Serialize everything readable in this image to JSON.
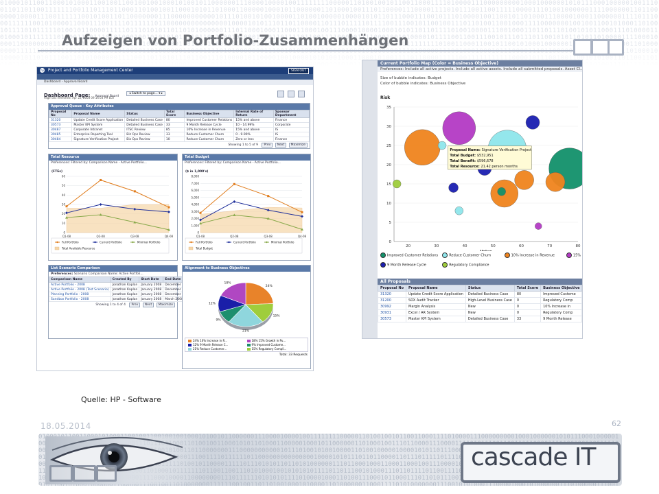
{
  "slide": {
    "title": "Aufzeigen von Portfolio-Zusammenhängen",
    "source": "Quelle: HP - Software",
    "date": "18.05.2014",
    "page": "62",
    "logo": "cascade IT"
  },
  "colors": {
    "accent": "#1d3e79",
    "title_gray": "#6f7278"
  },
  "left_app": {
    "header_title": "Project and Portfolio Management Center",
    "sign_out": "SIGN OUT",
    "breadcrumb": "Dashboard - Approval Board",
    "page_label": "Dashboard Page:",
    "page_name": "Approval Board",
    "switch_label": "Switch to page...",
    "last_refreshed": "Page last refreshed: Apr 22, 2008 09:14:54 PM EDT",
    "approval_queue": {
      "title": "Approval Queue - Key Attributes",
      "columns": [
        "Proposal No",
        "Proposal Name",
        "Status",
        "Total Score",
        "Business Objective",
        "Internal Rate of Return",
        "Sponsor Department"
      ],
      "rows": [
        [
          "31320",
          "Update Credit Score Application",
          "Detailed Business Case",
          "80",
          "Improved Customer Relations",
          "15% and above",
          "Finance"
        ],
        [
          "30573",
          "Master KPI System",
          "Detailed Business Case",
          "33",
          "9 Month Release Cycle",
          "10 - 14.99%",
          "Corporate"
        ],
        [
          "30487",
          "Corporate Intranet",
          "ITSC Review",
          "85",
          "10% Increase in Revenue",
          "15% and above",
          "IS"
        ],
        [
          "30485",
          "Enterprise Reporting Tool",
          "Biz Ops Review",
          "33",
          "Reduce Customer Churn",
          "0 - 9.99%",
          "IS"
        ],
        [
          "30484",
          "Signature Verification Project",
          "Biz Ops Review",
          "10",
          "Reduce Customer Churn",
          "Zero or less",
          "Finance"
        ]
      ],
      "pager": "Showing 1 to 5 of 9",
      "prev": "Prev",
      "next": "Next",
      "maximize": "Maximize"
    },
    "total_resource": {
      "title": "Total Resource",
      "prefs": "Preferences: Filtered by: Comparison Name - Active Portfolio...",
      "unit": "(FTEs)",
      "legend": [
        "Full Portfolio",
        "Current Portfolio",
        "Minimal Portfolio",
        "Total Available Resource"
      ]
    },
    "total_budget": {
      "title": "Total Budget",
      "prefs": "Preferences: Filtered by: Comparison Name - Active Portfolio...",
      "unit": "($ in 1,000's)",
      "legend": [
        "Full Portfolio",
        "Current Portfolio",
        "Minimal Portfolio",
        "Total Budget"
      ]
    },
    "scenario": {
      "title": "List Scenario Comparison",
      "prefs_label": "Preferences:",
      "prefs_value": "Scenario Comparison Name: Active Portfoli...",
      "columns": [
        "Comparison Name",
        "Created By",
        "Start Date",
        "End Date"
      ],
      "rows": [
        [
          "Active Portfolio - 2008",
          "Jonathan Kaplan",
          "January 2008",
          "December 2008"
        ],
        [
          "Active Portfolio - 2008 (Test Scenario)",
          "Jonathan Kaplan",
          "January 2008",
          "December 2008"
        ],
        [
          "Planning Portfolio - 2008",
          "Jonathan Kaplan",
          "January 2008",
          "December 2008"
        ],
        [
          "Sandbox Portfolio - 2008",
          "Jonathan Kaplan",
          "January 2008",
          "March 2008"
        ]
      ],
      "pager": "Showing 1 to 4 of 4"
    },
    "alignment": {
      "title": "Alignment to Business Objectives",
      "slice_labels": [
        "24%",
        "15%",
        "21%",
        "9%",
        "12%",
        "18%"
      ],
      "legend": [
        "24% 10% Increase in R...",
        "18% 15% Growth in Pu...",
        "12% 9 Month Release C...",
        "9% Improved Custome...",
        "21% Reduce Customer...",
        "15% Regulatory Compli..."
      ],
      "total": "Total: 33 Requests"
    }
  },
  "right_app": {
    "map_title": "Current Portfolio Map (Color = Business Objective)",
    "prefs": "Preferences: Include all active projects. Include all active assets. Include all submitted proposals. Asset Cl...",
    "size_note": "Size of bubble indicates: Budget",
    "color_note": "Color of bubble indicates: Business Objective",
    "tooltip": {
      "name_label": "Proposal Name:",
      "name": "Signature Verification Project",
      "budget_label": "Total Budget:",
      "budget": "$532,951",
      "benefit_label": "Total Benefit:",
      "benefit": "$596,678",
      "resource_label": "Total Resource:",
      "resource": "21.42 person months"
    },
    "legend": [
      "Improved Customer Relations",
      "Reduce Customer Churn",
      "10% Increase in Revenue",
      "15%",
      "9 Month Release Cycle",
      "Regulatory Compliance"
    ],
    "all_proposals": {
      "title": "All Proposals",
      "columns": [
        "Proposal No",
        "Proposal Name",
        "Status",
        "Total Score",
        "Business Objective"
      ],
      "rows": [
        [
          "31320",
          "Update Credit Score Application",
          "Detailed Business Case",
          "80",
          "Improved Custome"
        ],
        [
          "31200",
          "SOX Audit Tracker",
          "High-Level Business Case",
          "0",
          "Regulatory Comp"
        ],
        [
          "30992",
          "Margin Analysis",
          "New",
          "0",
          "10% Increase in"
        ],
        [
          "30931",
          "Excel / AR System",
          "New",
          "0",
          "Regulatory Comp"
        ],
        [
          "30573",
          "Master KPI System",
          "Detailed Business Case",
          "33",
          "9 Month Release"
        ]
      ]
    }
  },
  "chart_data": [
    {
      "type": "line",
      "title": "Total Resource",
      "ylabel": "(FTEs)",
      "categories": [
        "Q1-08",
        "Q2-08",
        "Q3-08",
        "Q4-08"
      ],
      "ylim": [
        0,
        60
      ],
      "yticks": [
        "0",
        "10",
        "20",
        "30",
        "40",
        "50",
        "60"
      ],
      "series": [
        {
          "name": "Full Portfolio",
          "values": [
            28,
            56,
            44,
            27
          ],
          "color": "#e07b1a"
        },
        {
          "name": "Current Portfolio",
          "values": [
            21,
            30,
            25,
            22
          ],
          "color": "#1f2f9a"
        },
        {
          "name": "Minimal Portfolio",
          "values": [
            16,
            19,
            11,
            3
          ],
          "color": "#88a94a"
        },
        {
          "name": "Total Available Resource",
          "values": [
            26,
            26,
            30,
            30
          ],
          "color": "#f6d6a8"
        }
      ]
    },
    {
      "type": "line",
      "title": "Total Budget",
      "ylabel": "($ in 1,000's)",
      "categories": [
        "Q1-08",
        "Q2-08",
        "Q3-08",
        "Q4-08"
      ],
      "ylim": [
        0,
        8000
      ],
      "yticks": [
        "0",
        "1,000",
        "2,000",
        "3,000",
        "4,000",
        "5,000",
        "6,000",
        "7,000",
        "8,000"
      ],
      "series": [
        {
          "name": "Full Portfolio",
          "values": [
            2800,
            6900,
            5200,
            2900
          ],
          "color": "#e07b1a"
        },
        {
          "name": "Current Portfolio",
          "values": [
            1800,
            4400,
            3200,
            2300
          ],
          "color": "#1f2f9a"
        },
        {
          "name": "Minimal Portfolio",
          "values": [
            1300,
            2500,
            2000,
            450
          ],
          "color": "#88a94a"
        },
        {
          "name": "Total Budget",
          "values": [
            2600,
            3100,
            3600,
            3500
          ],
          "color": "#f6d6a8"
        }
      ]
    },
    {
      "type": "pie",
      "title": "Alignment to Business Objectives",
      "values": [
        24,
        15,
        21,
        9,
        12,
        18
      ],
      "colors": [
        "#e8832a",
        "#9fcd3c",
        "#8fd6dd",
        "#1d8f6e",
        "#1a1ea8",
        "#b047c2"
      ]
    },
    {
      "type": "scatter",
      "title": "Current Portfolio Map (Color = Business Objective)",
      "xlabel": "Value",
      "ylabel": "Risk",
      "xlim": [
        15,
        80
      ],
      "ylim": [
        0,
        35
      ],
      "xticks": [
        "20",
        "30",
        "40",
        "50",
        "60",
        "70",
        "80"
      ],
      "yticks": [
        "0",
        "5",
        "10",
        "15",
        "20",
        "25",
        "30",
        "35"
      ],
      "points": [
        {
          "x": 25,
          "y": 24.5,
          "size": 13,
          "color": "#f0841e"
        },
        {
          "x": 32,
          "y": 25,
          "size": 3,
          "color": "#8fe6ec"
        },
        {
          "x": 38,
          "y": 29.5,
          "size": 12,
          "color": "#b43ac5"
        },
        {
          "x": 55,
          "y": 24,
          "size": 14,
          "color": "#8fe6ec"
        },
        {
          "x": 77,
          "y": 19,
          "size": 15,
          "color": "#12916b"
        },
        {
          "x": 64,
          "y": 31,
          "size": 5,
          "color": "#1b1fb0"
        },
        {
          "x": 54,
          "y": 12.5,
          "size": 10,
          "color": "#f0841e"
        },
        {
          "x": 53,
          "y": 13,
          "size": 3,
          "color": "#12916b"
        },
        {
          "x": 61,
          "y": 16,
          "size": 7,
          "color": "#f0841e"
        },
        {
          "x": 72,
          "y": 15.5,
          "size": 7,
          "color": "#f0841e"
        },
        {
          "x": 36,
          "y": 14,
          "size": 3.5,
          "color": "#1b1fb0"
        },
        {
          "x": 38,
          "y": 8,
          "size": 3,
          "color": "#8fe6ec"
        },
        {
          "x": 47,
          "y": 19,
          "size": 5,
          "color": "#1b1fb0"
        },
        {
          "x": 66,
          "y": 4,
          "size": 2.5,
          "color": "#b43ac5"
        },
        {
          "x": 16,
          "y": 15,
          "size": 3,
          "color": "#9fcd3c"
        }
      ]
    }
  ]
}
